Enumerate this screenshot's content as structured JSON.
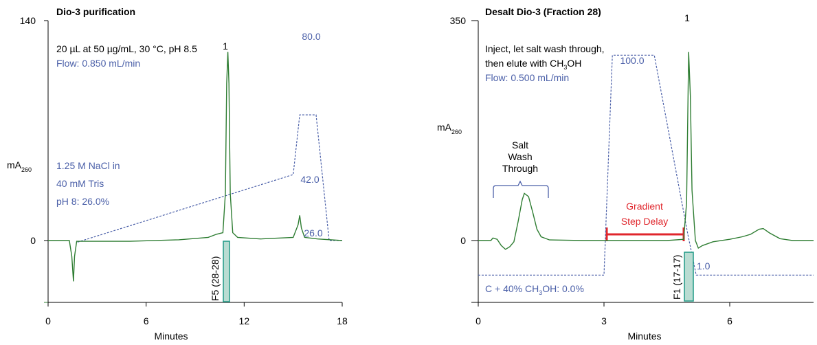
{
  "colors": {
    "trace": "#2e7d32",
    "gradient": "#4a5fa8",
    "fraction_fill": "#b9dcd2",
    "fraction_stroke": "#1f9a86",
    "delay": "#e0262c"
  },
  "chart_data": [
    {
      "type": "line",
      "title": "Dio-3 purification",
      "xlabel": "Minutes",
      "ylabel": "mA",
      "ylabel_sub": "260",
      "xlim": [
        0,
        18
      ],
      "ylim": [
        -42,
        140
      ],
      "xticks": [
        0,
        6,
        12,
        18
      ],
      "yticks": [
        0,
        140
      ],
      "annotations": {
        "conditions": "20 µL at 50 µg/mL, 30 °C, pH 8.5",
        "flow": "Flow: 0.850 mL/min",
        "mobile_phase": [
          "1.25 M NaCl in",
          "40 mM Tris",
          "pH 8: 26.0%"
        ],
        "peak_label": "1",
        "fraction": "F5 (28-28)",
        "gradient_labels": [
          "80.0",
          "42.0",
          "26.0"
        ]
      },
      "series": [
        {
          "values": [
            [
              0,
              0
            ],
            [
              1.3,
              0
            ],
            [
              1.45,
              -10
            ],
            [
              1.55,
              -26
            ],
            [
              1.62,
              -10
            ],
            [
              1.75,
              -0.5
            ],
            [
              2.6,
              -0.5
            ],
            [
              5,
              -0.5
            ],
            [
              8,
              0.5
            ],
            [
              9.8,
              2
            ],
            [
              10.3,
              4
            ],
            [
              10.7,
              5
            ],
            [
              10.85,
              30
            ],
            [
              10.93,
              100
            ],
            [
              11.0,
              120
            ],
            [
              11.07,
              100
            ],
            [
              11.15,
              30
            ],
            [
              11.3,
              5
            ],
            [
              11.6,
              2
            ],
            [
              13,
              1
            ],
            [
              15,
              2
            ],
            [
              15.3,
              10
            ],
            [
              15.4,
              16
            ],
            [
              15.5,
              8
            ],
            [
              15.7,
              2
            ],
            [
              16.5,
              1
            ],
            [
              18,
              0
            ]
          ]
        }
      ],
      "gradient": {
        "unit": "%",
        "points": [
          [
            1.8,
            -1
          ],
          [
            15.0,
            42.0
          ],
          [
            15.4,
            80.0
          ],
          [
            16.4,
            80.0
          ],
          [
            17.2,
            0
          ],
          [
            18,
            0
          ]
        ]
      },
      "fraction_window": [
        10.8,
        11.3
      ]
    },
    {
      "type": "line",
      "title": "Desalt Dio-3 (Fraction 28)",
      "xlabel": "Minutes",
      "ylabel": "mA",
      "ylabel_sub": "260",
      "xlim": [
        0,
        8
      ],
      "ylim": [
        -105,
        350
      ],
      "xticks": [
        0,
        3,
        6
      ],
      "yticks": [
        0,
        350
      ],
      "annotations": {
        "line1": "Inject, let salt wash through,",
        "line2_pre": "then elute with CH",
        "line2_sub": "3",
        "line2_post": "OH",
        "flow": "Flow: 0.500 mL/min",
        "salt_wash": [
          "Salt",
          "Wash",
          "Through"
        ],
        "gradient_delay": [
          "Gradient",
          "Step Delay"
        ],
        "mobile_phase_pre": "C + 40% CH",
        "mobile_phase_sub": "3",
        "mobile_phase_post": "OH: 0.0%",
        "peak_label": "1",
        "fraction": "F1 (17-17)",
        "gradient_labels": [
          "100.0",
          "1.0"
        ]
      },
      "series": [
        {
          "values": [
            [
              0,
              0
            ],
            [
              0.3,
              0
            ],
            [
              0.35,
              4
            ],
            [
              0.45,
              2
            ],
            [
              0.55,
              -8
            ],
            [
              0.65,
              -14
            ],
            [
              0.75,
              -10
            ],
            [
              0.85,
              -2
            ],
            [
              0.95,
              30
            ],
            [
              1.05,
              65
            ],
            [
              1.1,
              75
            ],
            [
              1.2,
              70
            ],
            [
              1.3,
              45
            ],
            [
              1.4,
              18
            ],
            [
              1.5,
              6
            ],
            [
              1.7,
              1
            ],
            [
              2.5,
              0
            ],
            [
              4.5,
              0
            ],
            [
              4.9,
              2
            ],
            [
              4.97,
              60
            ],
            [
              5.02,
              300
            ],
            [
              5.06,
              230
            ],
            [
              5.1,
              80
            ],
            [
              5.18,
              0
            ],
            [
              5.25,
              -12
            ],
            [
              5.35,
              -8
            ],
            [
              5.6,
              -2
            ],
            [
              6.0,
              2
            ],
            [
              6.3,
              6
            ],
            [
              6.5,
              10
            ],
            [
              6.7,
              18
            ],
            [
              6.8,
              19
            ],
            [
              6.95,
              12
            ],
            [
              7.2,
              3
            ],
            [
              7.5,
              0
            ],
            [
              8,
              0
            ]
          ]
        }
      ],
      "gradient": {
        "unit": "%",
        "points": [
          [
            0,
            -55
          ],
          [
            3.0,
            -55
          ],
          [
            3.2,
            295
          ],
          [
            4.2,
            295
          ],
          [
            5.0,
            10
          ],
          [
            5.2,
            -55
          ],
          [
            8,
            -55
          ]
        ]
      },
      "delay_span": [
        3.1,
        4.95
      ],
      "fraction_window": [
        4.98,
        5.18
      ]
    }
  ]
}
